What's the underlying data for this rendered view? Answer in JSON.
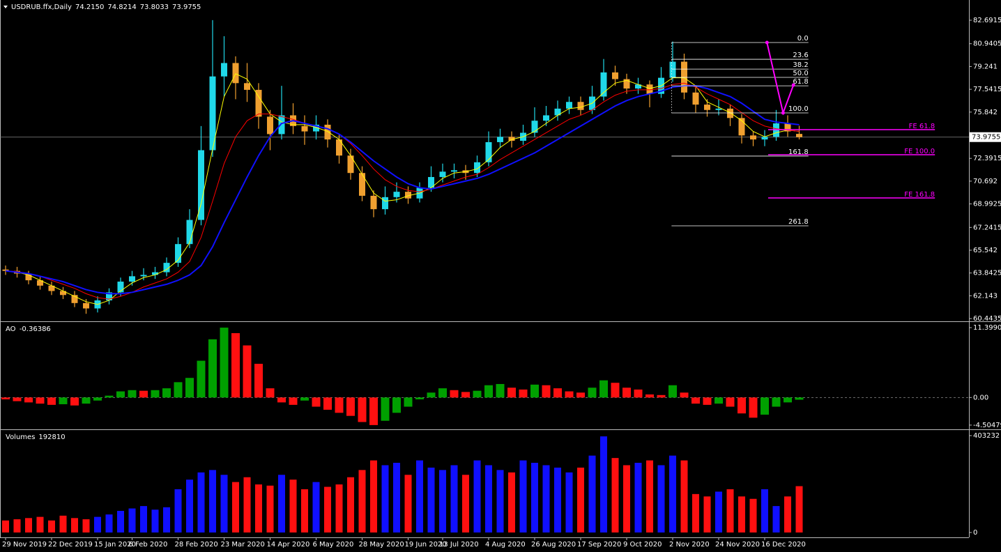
{
  "chart_data": [
    {
      "type": "candlestick",
      "title": "USDRUB.ffx,Daily",
      "header_values": [
        "74.2150",
        "74.8214",
        "73.8033",
        "73.9755"
      ],
      "up_color": "#20d8e8",
      "down_color": "#f0a030",
      "categories": [
        "29 Nov 2019",
        null,
        null,
        null,
        "22 Dec 2019",
        null,
        null,
        null,
        "15 Jan 2020",
        null,
        null,
        "6 Feb 2020",
        null,
        null,
        null,
        "28 Feb 2020",
        null,
        null,
        null,
        "23 Mar 2020",
        null,
        null,
        null,
        "14 Apr 2020",
        null,
        null,
        null,
        "6 May 2020",
        null,
        null,
        null,
        "28 May 2020",
        null,
        null,
        null,
        "19 Jun 2020",
        null,
        null,
        "13 Jul 2020",
        null,
        null,
        null,
        "4 Aug 2020",
        null,
        null,
        null,
        "26 Aug 2020",
        null,
        null,
        null,
        "17 Sep 2020",
        null,
        null,
        null,
        "9 Oct 2020",
        null,
        null,
        null,
        "2 Nov 2020",
        null,
        null,
        null,
        "24 Nov 2020",
        null,
        null,
        null,
        "16 Dec 2020",
        null,
        null,
        null
      ],
      "values": [
        [
          64.1,
          64.4,
          63.7,
          64.0
        ],
        [
          64.0,
          64.3,
          63.5,
          63.8
        ],
        [
          63.8,
          64.0,
          63.0,
          63.3
        ],
        [
          63.3,
          63.6,
          62.6,
          62.9
        ],
        [
          62.9,
          63.2,
          62.2,
          62.5
        ],
        [
          62.5,
          62.8,
          61.9,
          62.2
        ],
        [
          62.2,
          62.5,
          61.3,
          61.6
        ],
        [
          61.6,
          61.9,
          60.8,
          61.2
        ],
        [
          61.2,
          62.1,
          60.9,
          61.8
        ],
        [
          61.8,
          62.7,
          61.5,
          62.4
        ],
        [
          62.4,
          63.5,
          62.1,
          63.2
        ],
        [
          63.2,
          64.0,
          62.9,
          63.6
        ],
        [
          63.6,
          64.2,
          63.3,
          63.7
        ],
        [
          63.7,
          64.3,
          63.4,
          63.9
        ],
        [
          63.9,
          65.0,
          63.6,
          64.6
        ],
        [
          64.6,
          66.5,
          64.3,
          66.0
        ],
        [
          66.0,
          68.6,
          65.7,
          67.8
        ],
        [
          67.8,
          74.8,
          67.4,
          73.0
        ],
        [
          73.0,
          82.7,
          72.5,
          78.5
        ],
        [
          78.5,
          81.5,
          77.0,
          79.5
        ],
        [
          79.5,
          80.0,
          76.8,
          78.0
        ],
        [
          78.0,
          79.5,
          76.6,
          77.5
        ],
        [
          77.5,
          78.0,
          74.6,
          75.5
        ],
        [
          75.5,
          76.0,
          73.0,
          74.2
        ],
        [
          74.2,
          77.8,
          73.8,
          75.6
        ],
        [
          75.6,
          76.5,
          74.2,
          74.8
        ],
        [
          74.8,
          75.6,
          73.4,
          74.4
        ],
        [
          74.4,
          75.6,
          73.8,
          74.9
        ],
        [
          74.9,
          75.3,
          73.2,
          73.8
        ],
        [
          73.8,
          74.2,
          72.0,
          72.6
        ],
        [
          72.6,
          73.1,
          70.8,
          71.3
        ],
        [
          71.3,
          71.8,
          69.2,
          69.6
        ],
        [
          69.6,
          70.0,
          68.0,
          68.6
        ],
        [
          68.6,
          70.3,
          68.2,
          69.5
        ],
        [
          69.5,
          70.6,
          69.1,
          69.9
        ],
        [
          69.9,
          70.3,
          69.0,
          69.4
        ],
        [
          69.4,
          70.6,
          69.1,
          70.2
        ],
        [
          70.2,
          71.8,
          69.9,
          71.0
        ],
        [
          71.0,
          72.0,
          70.6,
          71.4
        ],
        [
          71.4,
          72.0,
          70.9,
          71.5
        ],
        [
          71.5,
          71.9,
          70.8,
          71.3
        ],
        [
          71.3,
          72.6,
          71.0,
          72.1
        ],
        [
          72.1,
          74.4,
          71.8,
          73.6
        ],
        [
          73.6,
          74.6,
          73.2,
          74.0
        ],
        [
          74.0,
          74.4,
          73.2,
          73.7
        ],
        [
          73.7,
          74.9,
          73.4,
          74.3
        ],
        [
          74.3,
          76.2,
          74.0,
          75.2
        ],
        [
          75.2,
          76.3,
          74.8,
          75.6
        ],
        [
          75.6,
          76.7,
          75.2,
          76.1
        ],
        [
          76.1,
          77.0,
          75.7,
          76.6
        ],
        [
          76.6,
          77.0,
          75.6,
          76.0
        ],
        [
          76.0,
          77.8,
          75.7,
          77.0
        ],
        [
          77.0,
          79.8,
          76.7,
          78.8
        ],
        [
          78.8,
          79.3,
          77.8,
          78.3
        ],
        [
          78.3,
          78.7,
          77.2,
          77.6
        ],
        [
          77.6,
          78.4,
          77.2,
          77.9
        ],
        [
          77.9,
          78.2,
          76.2,
          77.2
        ],
        [
          77.2,
          79.2,
          76.9,
          78.4
        ],
        [
          78.4,
          81.1,
          78.1,
          79.6
        ],
        [
          79.6,
          80.2,
          76.8,
          77.3
        ],
        [
          77.3,
          77.8,
          75.8,
          76.4
        ],
        [
          76.4,
          76.8,
          75.5,
          76.0
        ],
        [
          76.0,
          76.8,
          75.6,
          76.1
        ],
        [
          76.1,
          76.4,
          74.8,
          75.4
        ],
        [
          75.4,
          75.7,
          73.5,
          74.1
        ],
        [
          74.1,
          74.4,
          73.3,
          73.8
        ],
        [
          73.8,
          74.5,
          73.3,
          74.0
        ],
        [
          74.0,
          76.0,
          73.7,
          75.0
        ],
        [
          75.0,
          75.6,
          74.0,
          74.4
        ],
        [
          74.215,
          74.8214,
          73.8033,
          73.9755
        ]
      ],
      "lines": [
        {
          "color": "#ffff00",
          "width": 1,
          "values": [
            64.0,
            63.9,
            63.7,
            63.3,
            62.9,
            62.5,
            62.1,
            61.7,
            61.5,
            61.8,
            62.5,
            63.1,
            63.5,
            63.7,
            64.1,
            64.8,
            66.1,
            69.0,
            73.1,
            77.0,
            78.7,
            78.3,
            77.0,
            75.7,
            75.1,
            74.9,
            74.9,
            74.7,
            74.4,
            73.8,
            72.6,
            71.2,
            69.8,
            69.2,
            69.3,
            69.6,
            69.8,
            70.2,
            70.9,
            71.3,
            71.4,
            71.6,
            72.3,
            73.2,
            73.8,
            74.0,
            74.4,
            75.0,
            75.6,
            76.1,
            76.2,
            76.5,
            77.3,
            78.0,
            78.2,
            77.9,
            77.6,
            77.8,
            78.4,
            78.4,
            77.8,
            76.6,
            76.2,
            75.8,
            75.2,
            74.4,
            74.0,
            74.3,
            74.5,
            74.4
          ]
        },
        {
          "color": "#ff0000",
          "width": 1,
          "values": [
            64.0,
            63.95,
            63.8,
            63.6,
            63.3,
            63.0,
            62.7,
            62.3,
            62.0,
            61.9,
            62.1,
            62.4,
            62.8,
            63.1,
            63.4,
            63.9,
            64.7,
            66.5,
            69.2,
            72.0,
            74.0,
            75.2,
            75.7,
            75.7,
            75.5,
            75.3,
            75.0,
            74.8,
            74.6,
            74.2,
            73.5,
            72.6,
            71.6,
            70.8,
            70.3,
            70.0,
            69.9,
            70.1,
            70.4,
            70.7,
            71.0,
            71.2,
            71.7,
            72.3,
            72.8,
            73.3,
            73.8,
            74.3,
            74.8,
            75.3,
            75.6,
            76.0,
            76.6,
            77.1,
            77.4,
            77.5,
            77.5,
            77.6,
            77.9,
            78.0,
            77.7,
            77.2,
            76.8,
            76.4,
            75.8,
            75.2,
            74.8,
            74.6,
            74.5,
            74.4
          ]
        },
        {
          "color": "#1010ff",
          "width": 2,
          "values": [
            64.0,
            63.9,
            63.8,
            63.6,
            63.4,
            63.2,
            62.9,
            62.6,
            62.4,
            62.3,
            62.3,
            62.4,
            62.6,
            62.8,
            63.0,
            63.3,
            63.7,
            64.4,
            65.8,
            67.6,
            69.3,
            71.0,
            72.6,
            74.0,
            75.0,
            75.2,
            75.0,
            74.8,
            74.6,
            74.2,
            73.6,
            72.9,
            72.2,
            71.6,
            71.0,
            70.5,
            70.2,
            70.1,
            70.3,
            70.5,
            70.7,
            70.9,
            71.2,
            71.6,
            72.0,
            72.4,
            72.8,
            73.3,
            73.8,
            74.3,
            74.8,
            75.3,
            75.8,
            76.3,
            76.7,
            77.0,
            77.2,
            77.4,
            77.7,
            77.8,
            77.8,
            77.6,
            77.3,
            77.0,
            76.5,
            75.9,
            75.3,
            75.1,
            75.0,
            74.9
          ]
        }
      ],
      "price_line": 73.9755,
      "fibo": {
        "color": "#ffffff",
        "x": [
          57.9,
          69.8
        ],
        "levels": [
          {
            "label": "0.0",
            "value": 81.03
          },
          {
            "label": "23.6",
            "value": 79.78
          },
          {
            "label": "38.2",
            "value": 79.05
          },
          {
            "label": "50.0",
            "value": 78.43
          },
          {
            "label": "61.8",
            "value": 77.8
          },
          {
            "label": "100.0",
            "value": 75.78
          },
          {
            "label": "161.8",
            "value": 72.56
          },
          {
            "label": "261.8",
            "value": 67.36
          }
        ]
      },
      "expansion": {
        "color": "#ff00ff",
        "x": [
          66.3,
          80.8
        ],
        "levels": [
          {
            "label": "FE 61.8",
            "value": 74.53
          },
          {
            "label": "FE 100.0",
            "value": 72.66
          },
          {
            "label": "FE 161.8",
            "value": 69.44
          }
        ],
        "points_x": [
          66.2,
          67.6,
          68.5
        ],
        "points_y": [
          81.03,
          75.78,
          77.86
        ]
      },
      "ylim": [
        60.24,
        84.2
      ],
      "yticks": [
        82.6915,
        80.9405,
        79.241,
        77.5415,
        75.842,
        72.3915,
        70.692,
        68.9925,
        67.2415,
        65.542,
        63.8425,
        62.143,
        60.4435
      ]
    },
    {
      "type": "oscillator",
      "title": "AO",
      "up_color": "#00a000",
      "down_color": "#ff1010",
      "values": [
        -0.3,
        -0.6,
        -0.8,
        -1.0,
        -1.2,
        -1.1,
        -1.3,
        -1.0,
        -0.5,
        0.3,
        1.0,
        1.2,
        1.1,
        1.2,
        1.5,
        2.5,
        3.2,
        6.0,
        9.5,
        11.4,
        10.5,
        8.5,
        5.5,
        1.5,
        -0.8,
        -1.2,
        -0.5,
        -1.5,
        -2.0,
        -2.5,
        -3.0,
        -4.0,
        -4.5,
        -3.8,
        -2.5,
        -1.5,
        -0.3,
        0.8,
        1.5,
        1.2,
        0.9,
        1.1,
        2.0,
        2.2,
        1.6,
        1.3,
        2.1,
        2.0,
        1.5,
        1.0,
        0.8,
        1.6,
        2.8,
        2.4,
        1.6,
        1.3,
        0.5,
        0.4,
        2.0,
        0.8,
        -1.0,
        -1.2,
        -1.0,
        -1.5,
        -2.6,
        -3.3,
        -2.8,
        -1.5,
        -0.8,
        -0.36386
      ],
      "ylim": [
        -5.196,
        12.32
      ],
      "yticks": [
        11.39902,
        {
          "value": 0,
          "label": "0.00"
        },
        -4.50479
      ]
    },
    {
      "type": "volume",
      "title": "Volumes",
      "up_color": "#1010ff",
      "down_color": "#ff1010",
      "values": [
        50000,
        55000,
        60000,
        65000,
        50000,
        70000,
        60000,
        55000,
        65000,
        75000,
        90000,
        100000,
        110000,
        95000,
        105000,
        180000,
        220000,
        250000,
        260000,
        240000,
        210000,
        230000,
        200000,
        195000,
        240000,
        220000,
        180000,
        210000,
        190000,
        200000,
        230000,
        260000,
        300000,
        280000,
        290000,
        240000,
        300000,
        270000,
        260000,
        280000,
        240000,
        300000,
        280000,
        260000,
        250000,
        300000,
        290000,
        280000,
        270000,
        250000,
        270000,
        320000,
        400000,
        310000,
        280000,
        290000,
        300000,
        280000,
        320000,
        300000,
        160000,
        150000,
        170000,
        180000,
        150000,
        140000,
        180000,
        110000,
        150000,
        192810
      ],
      "ylim": [
        -20300,
        426440
      ],
      "yticks": [
        403232,
        0
      ]
    }
  ]
}
